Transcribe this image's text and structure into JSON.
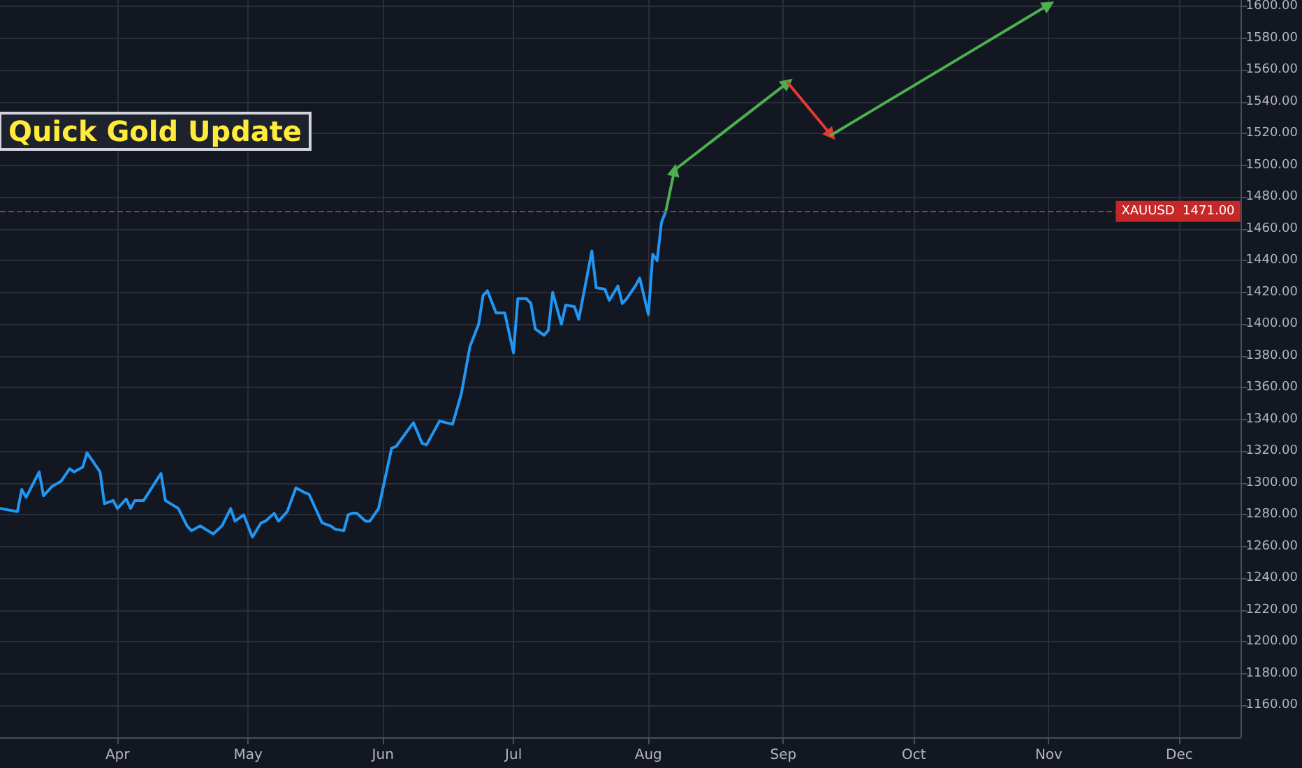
{
  "chart_data": {
    "type": "line",
    "title": "Quick Gold Update",
    "xlim": [
      "--03-05",
      "--12-15"
    ],
    "xticks": [
      {
        "value": "--04-01",
        "label": "Apr"
      },
      {
        "value": "--05-01",
        "label": "May"
      },
      {
        "value": "--06-01",
        "label": "Jun"
      },
      {
        "value": "--07-01",
        "label": "Jul"
      },
      {
        "value": "--08-01",
        "label": "Aug"
      },
      {
        "value": "--09-01",
        "label": "Sep"
      },
      {
        "value": "--10-01",
        "label": "Oct"
      },
      {
        "value": "--11-01",
        "label": "Nov"
      },
      {
        "value": "--12-01",
        "label": "Dec"
      }
    ],
    "ylim": [
      1140,
      1604
    ],
    "yticks": [
      {
        "value": 1160,
        "label": "1160.00"
      },
      {
        "value": 1180,
        "label": "1180.00"
      },
      {
        "value": 1200,
        "label": "1200.00"
      },
      {
        "value": 1220,
        "label": "1220.00"
      },
      {
        "value": 1240,
        "label": "1240.00"
      },
      {
        "value": 1260,
        "label": "1260.00"
      },
      {
        "value": 1280,
        "label": "1280.00"
      },
      {
        "value": 1300,
        "label": "1300.00"
      },
      {
        "value": 1320,
        "label": "1320.00"
      },
      {
        "value": 1340,
        "label": "1340.00"
      },
      {
        "value": 1360,
        "label": "1360.00"
      },
      {
        "value": 1380,
        "label": "1380.00"
      },
      {
        "value": 1400,
        "label": "1400.00"
      },
      {
        "value": 1420,
        "label": "1420.00"
      },
      {
        "value": 1440,
        "label": "1440.00"
      },
      {
        "value": 1460,
        "label": "1460.00"
      },
      {
        "value": 1480,
        "label": "1480.00"
      },
      {
        "value": 1500,
        "label": "1500.00"
      },
      {
        "value": 1520,
        "label": "1520.00"
      },
      {
        "value": 1540,
        "label": "1540.00"
      },
      {
        "value": 1560,
        "label": "1560.00"
      },
      {
        "value": 1580,
        "label": "1580.00"
      },
      {
        "value": 1600,
        "label": "1600.00"
      }
    ],
    "grid": true,
    "marker": "none",
    "line_style": "solid",
    "ref_lines": [
      {
        "axis": "y",
        "value": 1471,
        "label": "XAUUSD  1471.00",
        "color": "#c62828",
        "line_style": "dashed"
      }
    ],
    "series": [
      {
        "color": "#2196f3",
        "x": [
          "--03-05",
          "--03-09",
          "--03-10",
          "--03-11",
          "--03-14",
          "--03-15",
          "--03-17",
          "--03-19",
          "--03-21",
          "--03-22",
          "--03-24",
          "--03-25",
          "--03-28",
          "--03-29",
          "--03-31",
          "--04-01",
          "--04-03",
          "--04-04",
          "--04-05",
          "--04-07",
          "--04-11",
          "--04-12",
          "--04-15",
          "--04-17",
          "--04-18",
          "--04-20",
          "--04-23",
          "--04-25",
          "--04-27",
          "--04-28",
          "--04-30",
          "--05-02",
          "--05-04",
          "--05-05",
          "--05-07",
          "--05-08",
          "--05-10",
          "--05-12",
          "--05-14",
          "--05-15",
          "--05-18",
          "--05-20",
          "--05-21",
          "--05-23",
          "--05-24",
          "--05-25",
          "--05-26",
          "--05-28",
          "--05-29",
          "--05-31",
          "--06-03",
          "--06-04",
          "--06-08",
          "--06-10",
          "--06-11",
          "--06-14",
          "--06-17",
          "--06-19",
          "--06-21",
          "--06-23",
          "--06-24",
          "--06-25",
          "--06-27",
          "--06-29",
          "--07-01",
          "--07-02",
          "--07-04",
          "--07-05",
          "--07-06",
          "--07-08",
          "--07-09",
          "--07-10",
          "--07-12",
          "--07-13",
          "--07-15",
          "--07-16",
          "--07-19",
          "--07-20",
          "--07-22",
          "--07-23",
          "--07-25",
          "--07-26",
          "--07-27",
          "--07-29",
          "--07-30",
          "--08-01",
          "--08-02",
          "--08-03",
          "--08-04",
          "--08-05"
        ],
        "values": [
          1284,
          1282,
          1296,
          1291,
          1307,
          1292,
          1298,
          1301,
          1309,
          1307,
          1310,
          1319,
          1307,
          1287,
          1289,
          1284,
          1290,
          1284,
          1289,
          1289,
          1306,
          1289,
          1284,
          1273,
          1270,
          1273,
          1268,
          1273,
          1284,
          1276,
          1280,
          1266,
          1275,
          1276,
          1281,
          1276,
          1282,
          1297,
          1294,
          1293,
          1275,
          1273,
          1271,
          1270,
          1280,
          1281,
          1281,
          1276,
          1276,
          1284,
          1322,
          1323,
          1338,
          1325,
          1324,
          1339,
          1337,
          1356,
          1386,
          1400,
          1418,
          1421,
          1407,
          1407,
          1382,
          1416,
          1416,
          1413,
          1397,
          1393,
          1396,
          1420,
          1400,
          1412,
          1411,
          1403,
          1446,
          1423,
          1422,
          1415,
          1424,
          1413,
          1416,
          1424,
          1429,
          1406,
          1444,
          1440,
          1464,
          1471
        ]
      },
      {
        "color": "#4caf50",
        "marker": "triangle",
        "x": [
          "--08-05",
          "--08-07"
        ],
        "values": [
          1471,
          1497
        ]
      },
      {
        "color": "#4caf50",
        "marker": "triangle",
        "x": [
          "--08-07",
          "--09-02"
        ],
        "values": [
          1497,
          1552
        ]
      },
      {
        "color": "#e53935",
        "marker": "triangle",
        "x": [
          "--09-02",
          "--09-12"
        ],
        "values": [
          1552,
          1519
        ]
      },
      {
        "color": "#4caf50",
        "marker": "triangle",
        "x": [
          "--09-12",
          "--11-01"
        ],
        "values": [
          1519,
          1601
        ]
      }
    ]
  }
}
